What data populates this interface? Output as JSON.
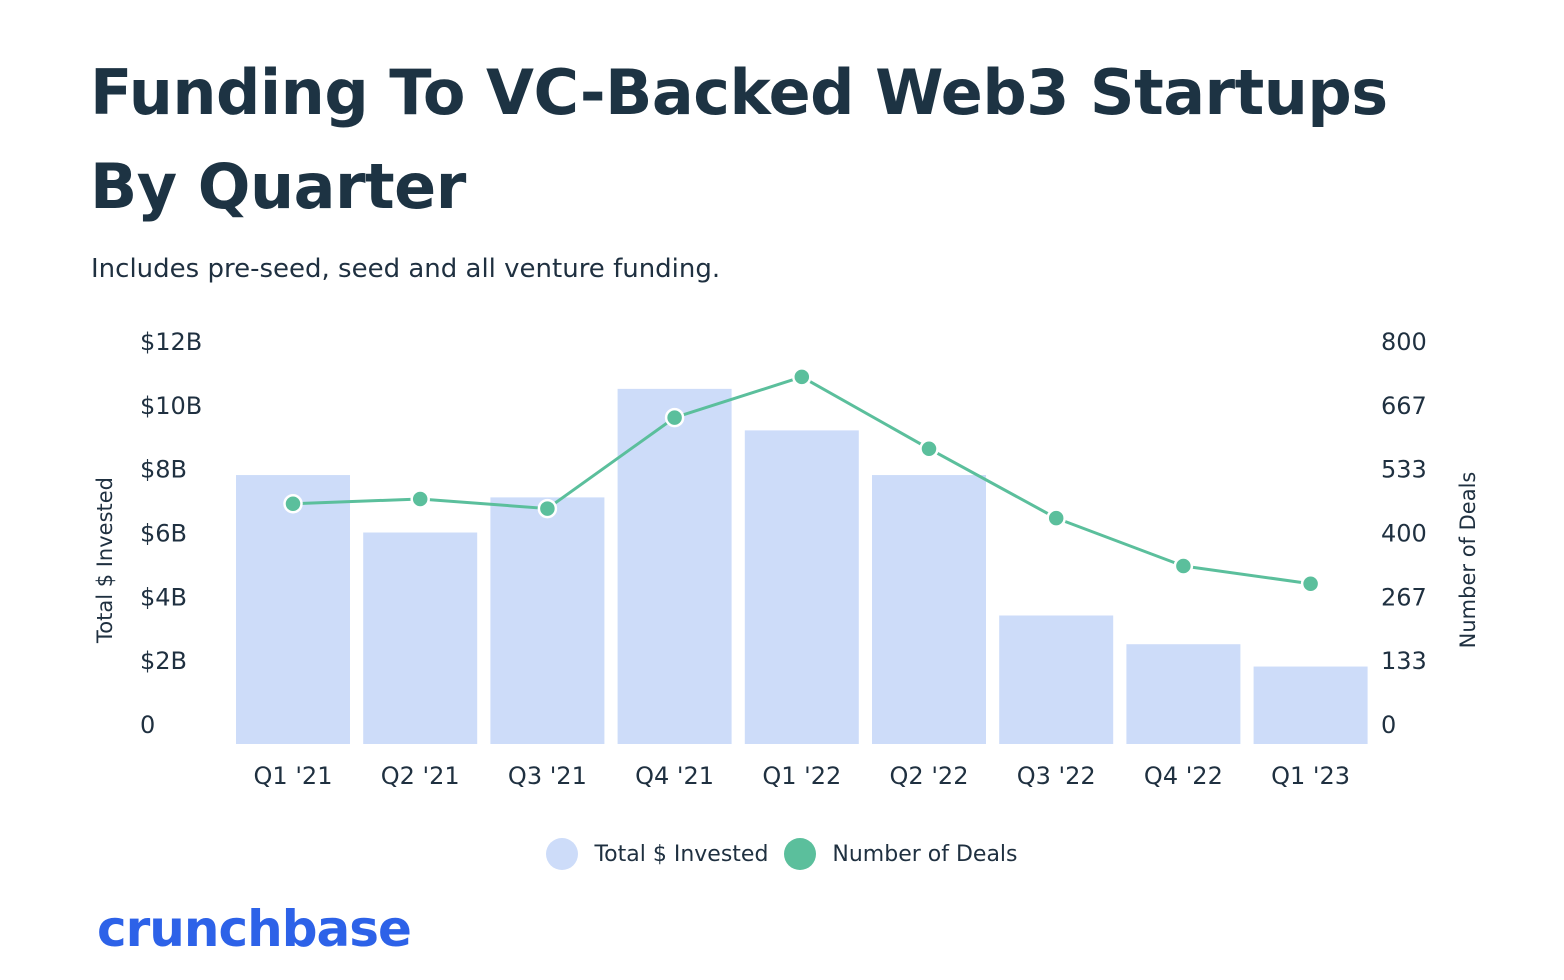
{
  "title": "Funding To VC-Backed Web3 Startups By Quarter",
  "subtitle": "Includes pre-seed, seed and all venture funding.",
  "logo": "crunchbase",
  "colors": {
    "bar": "#cddcf9",
    "line": "#5bbf9c",
    "text": "#1f3040",
    "logo": "#2d62e8"
  },
  "legend": {
    "bars": "Total $ Invested",
    "line": "Number of Deals"
  },
  "chart_data": {
    "type": "bar",
    "categories": [
      "Q1 '21",
      "Q2 '21",
      "Q3 '21",
      "Q4 '21",
      "Q1 '22",
      "Q2 '22",
      "Q3 '22",
      "Q4 '22",
      "Q1 '23"
    ],
    "series": [
      {
        "name": "Total $ Invested",
        "type": "bar",
        "axis": "left",
        "values": [
          7.8,
          6.0,
          7.1,
          10.5,
          9.2,
          7.8,
          3.4,
          2.5,
          1.8
        ]
      },
      {
        "name": "Number of Deals",
        "type": "line",
        "axis": "right",
        "values": [
          460,
          470,
          450,
          640,
          725,
          575,
          430,
          330,
          293
        ]
      }
    ],
    "ylabel": "Total $ Invested",
    "y2label": "Number of Deals",
    "ylim": [
      0,
      12
    ],
    "y2lim": [
      0,
      800
    ],
    "yticks": [
      "0",
      "$2B",
      "$4B",
      "$6B",
      "$8B",
      "$10B",
      "$12B"
    ],
    "y2ticks": [
      "0",
      "133",
      "267",
      "400",
      "533",
      "667",
      "800"
    ],
    "grid": false,
    "legend_position": "bottom"
  }
}
